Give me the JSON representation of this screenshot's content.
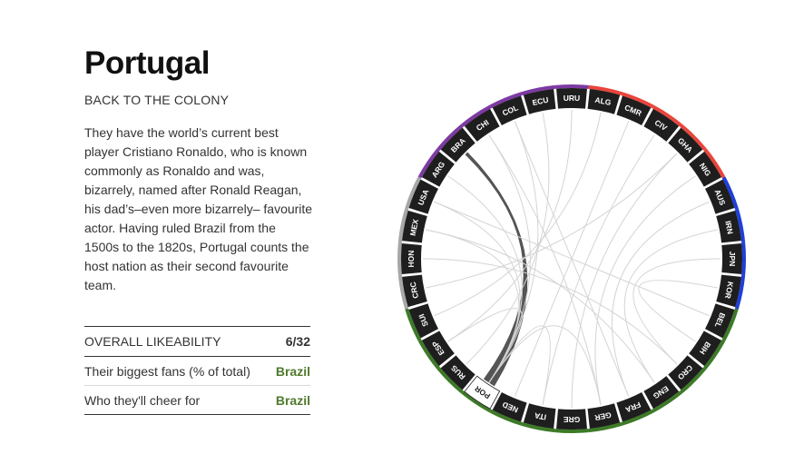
{
  "panel": {
    "title": "Portugal",
    "subtitle": "BACK TO THE COLONY",
    "description": "They have the world’s current best player Cristiano Ronaldo, who is known commonly as Ronaldo and was, bizarrely, named after Ronald Reagan, his dad’s–even more bizarrely– favourite actor. Having ruled Brazil from the 1500s to the 1820s, Portugal counts the host nation as their second favourite team."
  },
  "stats": [
    {
      "label": "OVERALL LIKEABILITY",
      "value": "6/32",
      "value_color": "#333333"
    },
    {
      "label": "Their biggest fans (% of total)",
      "value": "Brazil",
      "value_color": "#4f7a2c"
    },
    {
      "label": "Who they'll cheer for",
      "value": "Brazil",
      "value_color": "#4f7a2c"
    }
  ],
  "chart_data": {
    "type": "chord",
    "teams": [
      "URU",
      "ALG",
      "CMR",
      "CIV",
      "GHA",
      "NIG",
      "AUS",
      "IRN",
      "JPN",
      "KOR",
      "BEL",
      "BIH",
      "CRO",
      "ENG",
      "FRA",
      "GER",
      "GRE",
      "ITA",
      "NED",
      "POR",
      "RUS",
      "ESP",
      "SUI",
      "CRC",
      "HON",
      "MEX",
      "USA",
      "ARG",
      "BRA",
      "CHI",
      "COL",
      "ECU"
    ],
    "selected": "POR",
    "highlighted_link": {
      "from": "POR",
      "to": "BRA"
    },
    "regions": [
      {
        "teams": [
          "ALG",
          "CMR",
          "CIV",
          "GHA",
          "NIG"
        ],
        "color": "#e8453c"
      },
      {
        "teams": [
          "AUS",
          "IRN",
          "JPN",
          "KOR"
        ],
        "color": "#1f3fd8"
      },
      {
        "teams": [
          "BEL",
          "BIH",
          "CRO",
          "ENG",
          "FRA",
          "GER",
          "GRE",
          "ITA",
          "NED",
          "POR",
          "RUS",
          "ESP",
          "SUI"
        ],
        "color": "#3d7a27"
      },
      {
        "teams": [
          "CRC",
          "HON",
          "MEX",
          "USA"
        ],
        "color": "#a7a7a7"
      },
      {
        "teams": [
          "ARG",
          "BRA",
          "CHI",
          "COL",
          "ECU",
          "URU"
        ],
        "color": "#7d3aa3"
      }
    ],
    "links": [
      {
        "from": "POR",
        "to": "BRA"
      },
      {
        "from": "POR",
        "to": "ARG"
      },
      {
        "from": "POR",
        "to": "CHI"
      },
      {
        "from": "POR",
        "to": "COL"
      },
      {
        "from": "POR",
        "to": "USA"
      },
      {
        "from": "POR",
        "to": "MEX"
      },
      {
        "from": "POR",
        "to": "ESP"
      },
      {
        "from": "POR",
        "to": "ITA"
      },
      {
        "from": "POR",
        "to": "GER"
      },
      {
        "from": "RUS",
        "to": "ECU"
      },
      {
        "from": "ESP",
        "to": "URU"
      },
      {
        "from": "SUI",
        "to": "ALG"
      },
      {
        "from": "NED",
        "to": "CMR"
      },
      {
        "from": "ITA",
        "to": "CIV"
      },
      {
        "from": "GRE",
        "to": "GHA"
      },
      {
        "from": "GER",
        "to": "NIG"
      },
      {
        "from": "FRA",
        "to": "AUS"
      },
      {
        "from": "ENG",
        "to": "IRN"
      },
      {
        "from": "CRO",
        "to": "JPN"
      },
      {
        "from": "BIH",
        "to": "KOR"
      },
      {
        "from": "BEL",
        "to": "USA"
      },
      {
        "from": "GHA",
        "to": "CRC"
      },
      {
        "from": "CHI",
        "to": "GER"
      },
      {
        "from": "COL",
        "to": "FRA"
      },
      {
        "from": "MEX",
        "to": "ENG"
      },
      {
        "from": "HON",
        "to": "CRO"
      }
    ]
  }
}
